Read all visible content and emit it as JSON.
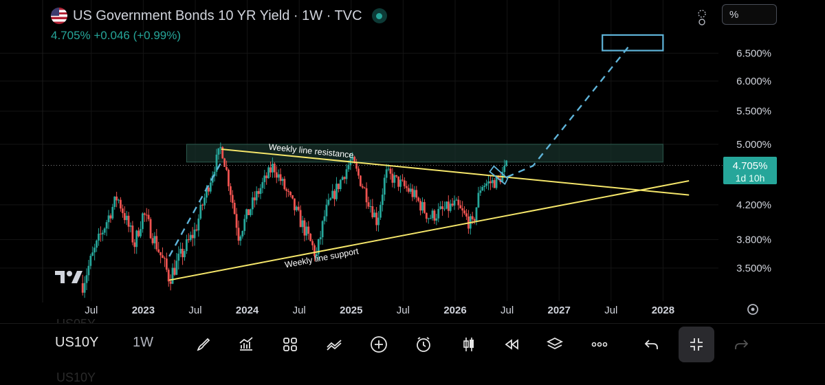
{
  "header": {
    "title": "US Government Bonds 10 YR Yield · 1W · TVC",
    "quote": "4.705%  +0.046 (+0.99%)",
    "scale_mode": "%"
  },
  "price_label": {
    "value": "4.705%",
    "countdown": "1d 10h"
  },
  "toolbar": {
    "symbol": "US10Y",
    "interval": "1W",
    "ghost_above": "US05Y",
    "ghost_below": "US10Y"
  },
  "colors": {
    "up": "#26a69a",
    "down": "#ef5350",
    "trendline": "#f5e66a",
    "projection": "#5fb4d9",
    "zone": "#17302a",
    "price_label_bg": "#26a69a"
  },
  "chart_data": {
    "type": "candlestick",
    "title": "US Government Bonds 10 YR Yield · 1W · TVC",
    "y_axis": {
      "side": "right",
      "scale": "log",
      "ticks": [
        3.5,
        3.8,
        4.2,
        5.0,
        5.5,
        6.0,
        6.5
      ],
      "tick_labels": [
        "3.500%",
        "3.800%",
        "4.200%",
        "5.000%",
        "5.500%",
        "6.000%",
        "6.500%"
      ],
      "range": [
        3.22,
        7.0
      ]
    },
    "x_axis": {
      "ticks": [
        "2022-07",
        "2023-01",
        "2023-07",
        "2024-01",
        "2024-07",
        "2025-01",
        "2025-07",
        "2026-01",
        "2026-07",
        "2027-01",
        "2027-07",
        "2028-01"
      ],
      "tick_labels": [
        "Jul",
        "2023",
        "Jul",
        "2024",
        "Jul",
        "2025",
        "Jul",
        "2026",
        "Jul",
        "2027",
        "Jul",
        "2028"
      ],
      "range": [
        "2022-04",
        "2028-07"
      ]
    },
    "last_price": 4.705,
    "anchors": [
      [
        "2022-06",
        3.35
      ],
      [
        "2022-10",
        4.3
      ],
      [
        "2022-12",
        3.75
      ],
      [
        "2023-01",
        4.1
      ],
      [
        "2023-04",
        3.4
      ],
      [
        "2023-07",
        3.9
      ],
      [
        "2023-10",
        4.97
      ],
      [
        "2023-12",
        3.85
      ],
      [
        "2024-02",
        4.3
      ],
      [
        "2024-04",
        4.7
      ],
      [
        "2024-06",
        4.25
      ],
      [
        "2024-09",
        3.62
      ],
      [
        "2024-10",
        4.1
      ],
      [
        "2025-01",
        4.78
      ],
      [
        "2025-04",
        4.0
      ],
      [
        "2025-05",
        4.6
      ],
      [
        "2025-08",
        4.35
      ],
      [
        "2025-10",
        4.05
      ],
      [
        "2026-01",
        4.2
      ],
      [
        "2026-03",
        3.95
      ],
      [
        "2026-04",
        4.45
      ],
      [
        "2026-06",
        4.5
      ],
      [
        "2026-07",
        4.705
      ]
    ],
    "annotations": [
      {
        "type": "trendline",
        "label": "Weekly line resistance",
        "from": [
          "2023-10",
          4.93
        ],
        "to": [
          "2028-04",
          4.32
        ]
      },
      {
        "type": "trendline",
        "label": "Weekly line support",
        "from": [
          "2023-04",
          3.38
        ],
        "to": [
          "2028-04",
          4.5
        ]
      },
      {
        "type": "zone",
        "from": [
          "2023-06",
          5.0
        ],
        "to": [
          "2028-01",
          4.75
        ]
      },
      {
        "type": "target_box",
        "from": [
          "2027-06",
          6.85
        ],
        "to": [
          "2028-01",
          6.55
        ]
      },
      {
        "type": "projection",
        "path": [
          [
            "2026-07",
            4.55
          ],
          [
            "2026-10",
            4.7
          ],
          [
            "2027-09",
            6.62
          ]
        ]
      },
      {
        "type": "projection",
        "path": [
          [
            "2023-04",
            3.62
          ],
          [
            "2023-10",
            4.75
          ]
        ]
      }
    ]
  }
}
